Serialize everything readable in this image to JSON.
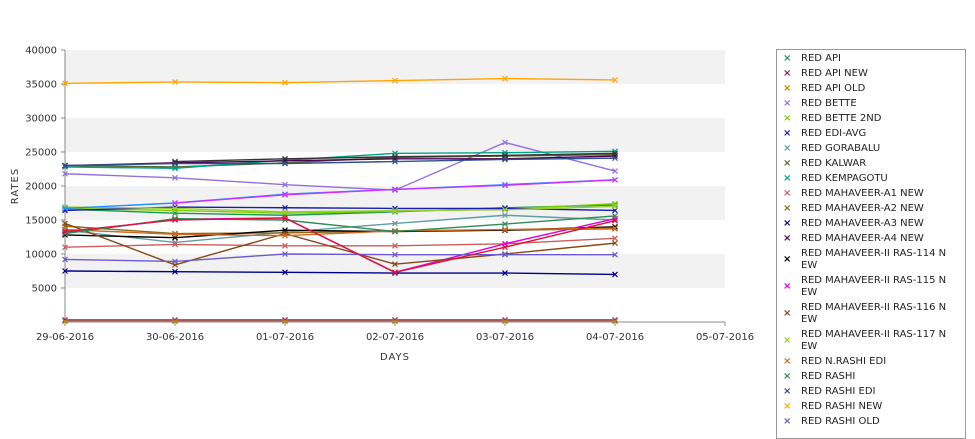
{
  "chart_data": {
    "type": "line",
    "xlabel": "DAYS",
    "ylabel": "RATES",
    "x_ticks": [
      "29-06-2016",
      "30-06-2016",
      "01-07-2016",
      "02-07-2016",
      "03-07-2016",
      "04-07-2016",
      "05-07-2016"
    ],
    "y_ticks": [
      "5000",
      "10000",
      "15000",
      "20000",
      "25000",
      "30000",
      "35000",
      "40000"
    ],
    "ylim": [
      0,
      40000
    ],
    "grid": "alternating horizontal bands",
    "legend_position": "right",
    "series": [
      {
        "name": "RED API",
        "color": "#1a9850",
        "x": [
          "29-06-2016",
          "30-06-2016",
          "01-07-2016",
          "02-07-2016",
          "03-07-2016",
          "04-07-2016"
        ],
        "values": [
          16600,
          16000,
          15700,
          16200,
          16800,
          17200
        ]
      },
      {
        "name": "RED API NEW",
        "color": "#8b1a6b",
        "x": [
          "29-06-2016",
          "30-06-2016",
          "01-07-2016",
          "02-07-2016",
          "03-07-2016",
          "04-07-2016"
        ],
        "values": [
          300,
          300,
          300,
          300,
          300,
          300
        ]
      },
      {
        "name": "RED API OLD",
        "color": "#b8860b",
        "x": [
          "29-06-2016",
          "30-06-2016",
          "01-07-2016",
          "02-07-2016",
          "03-07-2016",
          "04-07-2016"
        ],
        "values": [
          100,
          100,
          100,
          100,
          100,
          100
        ]
      },
      {
        "name": "RED BETTE",
        "color": "#9370db",
        "x": [
          "29-06-2016",
          "30-06-2016",
          "01-07-2016",
          "02-07-2016",
          "03-07-2016",
          "04-07-2016"
        ],
        "values": [
          21800,
          21200,
          20200,
          19400,
          26400,
          22200
        ]
      },
      {
        "name": "RED BETTE 2ND",
        "color": "#7ccd00",
        "x": [
          "29-06-2016",
          "30-06-2016",
          "01-07-2016",
          "02-07-2016",
          "03-07-2016",
          "04-07-2016"
        ],
        "values": [
          16700,
          16400,
          16000,
          16300,
          16600,
          17400
        ]
      },
      {
        "name": "RED EDI-AVG",
        "color": "#1b1bb0",
        "x": [
          "29-06-2016",
          "30-06-2016",
          "01-07-2016",
          "02-07-2016",
          "03-07-2016",
          "04-07-2016"
        ],
        "values": [
          16400,
          16900,
          16800,
          16700,
          16700,
          16400
        ]
      },
      {
        "name": "RED GORABALU",
        "color": "#5f9ea0",
        "x": [
          "29-06-2016",
          "30-06-2016",
          "01-07-2016",
          "02-07-2016",
          "03-07-2016",
          "04-07-2016"
        ],
        "values": [
          13500,
          11700,
          13200,
          14500,
          15700,
          15000
        ]
      },
      {
        "name": "RED KALWAR",
        "color": "#556b2f",
        "x": [
          "29-06-2016",
          "30-06-2016",
          "01-07-2016",
          "02-07-2016",
          "03-07-2016",
          "04-07-2016"
        ],
        "values": [
          23000,
          22800,
          23400,
          24200,
          24400,
          24600
        ]
      },
      {
        "name": "RED KEMPAGOTU",
        "color": "#00a087",
        "x": [
          "29-06-2016",
          "30-06-2016",
          "01-07-2016",
          "02-07-2016",
          "03-07-2016",
          "04-07-2016"
        ],
        "values": [
          22800,
          22600,
          23800,
          24800,
          24900,
          25100
        ]
      },
      {
        "name": "RED MAHAVEER-A1 NEW",
        "color": "#cd5c5c",
        "x": [
          "29-06-2016",
          "30-06-2016",
          "01-07-2016",
          "02-07-2016",
          "03-07-2016",
          "04-07-2016"
        ],
        "values": [
          11000,
          11400,
          11200,
          11200,
          11500,
          12300
        ]
      },
      {
        "name": "RED MAHAVEER-A2 NEW",
        "color": "#8b6914",
        "x": [
          "29-06-2016",
          "30-06-2016",
          "01-07-2016",
          "02-07-2016",
          "03-07-2016",
          "04-07-2016"
        ],
        "values": [
          14100,
          13000,
          13100,
          13400,
          13500,
          13700
        ]
      },
      {
        "name": "RED MAHAVEER-A3 NEW",
        "color": "#00008b",
        "x": [
          "29-06-2016",
          "30-06-2016",
          "01-07-2016",
          "02-07-2016",
          "03-07-2016",
          "04-07-2016"
        ],
        "values": [
          7500,
          7400,
          7300,
          7200,
          7200,
          7000
        ]
      },
      {
        "name": "RED MAHAVEER-A4 NEW",
        "color": "#4b0050",
        "x": [
          "29-06-2016",
          "30-06-2016",
          "01-07-2016",
          "02-07-2016",
          "03-07-2016",
          "04-07-2016"
        ],
        "values": [
          23000,
          23400,
          23700,
          24000,
          24000,
          24400
        ]
      },
      {
        "name": "RED MAHAVEER-II RAS-114 NEW",
        "color": "#000000",
        "x": [
          "29-06-2016",
          "30-06-2016",
          "01-07-2016",
          "02-07-2016",
          "03-07-2016",
          "04-07-2016"
        ],
        "values": [
          12800,
          12400,
          13500,
          13300,
          13500,
          14000
        ]
      },
      {
        "name": "RED MAHAVEER-II RAS-115 NEW",
        "color": "#e000e0",
        "x": [
          "29-06-2016",
          "30-06-2016",
          "01-07-2016",
          "02-07-2016",
          "03-07-2016",
          "04-07-2016"
        ],
        "values": [
          13100,
          15100,
          15300,
          7300,
          11500,
          15200
        ]
      },
      {
        "name": "RED MAHAVEER-II RAS-116 NEW",
        "color": "#8b4513",
        "x": [
          "29-06-2016",
          "30-06-2016",
          "01-07-2016",
          "02-07-2016",
          "03-07-2016",
          "04-07-2016"
        ],
        "values": [
          14500,
          8400,
          13000,
          8500,
          10000,
          11600
        ]
      },
      {
        "name": "RED MAHAVEER-II RAS-117 NEW",
        "color": "#9acd32",
        "x": [
          "29-06-2016",
          "30-06-2016",
          "01-07-2016",
          "02-07-2016",
          "03-07-2016",
          "04-07-2016"
        ],
        "values": [
          16900,
          16700,
          16200,
          16400,
          16500,
          17000
        ]
      },
      {
        "name": "RED N.RASHI EDI",
        "color": "#d2691e",
        "x": [
          "29-06-2016",
          "30-06-2016",
          "01-07-2016",
          "02-07-2016",
          "03-07-2016",
          "04-07-2016"
        ],
        "values": [
          13600,
          12900,
          12700,
          13400,
          13600,
          13800
        ]
      },
      {
        "name": "RED RASHI",
        "color": "#2e8b57",
        "x": [
          "29-06-2016",
          "30-06-2016",
          "01-07-2016",
          "02-07-2016",
          "03-07-2016",
          "04-07-2016"
        ],
        "values": [
          13000,
          15200,
          15000,
          13300,
          14400,
          15600
        ]
      },
      {
        "name": "RED RASHI EDI",
        "color": "#2f4f8f",
        "x": [
          "29-06-2016",
          "30-06-2016",
          "01-07-2016",
          "02-07-2016",
          "03-07-2016",
          "04-07-2016"
        ],
        "values": [
          23000,
          23300,
          23300,
          23600,
          23900,
          24100
        ]
      },
      {
        "name": "RED RASHI NEW",
        "color": "#ffa500",
        "x": [
          "29-06-2016",
          "30-06-2016",
          "01-07-2016",
          "02-07-2016",
          "03-07-2016",
          "04-07-2016"
        ],
        "values": [
          35100,
          35300,
          35200,
          35500,
          35800,
          35600
        ]
      },
      {
        "name": "RED RASHI OLD",
        "color": "#6a5acd",
        "x": [
          "29-06-2016",
          "30-06-2016",
          "01-07-2016",
          "02-07-2016",
          "03-07-2016",
          "04-07-2016"
        ],
        "values": [
          9200,
          8900,
          10000,
          9900,
          9900,
          9900
        ]
      },
      {
        "name": "",
        "color": "#1e90ff",
        "x": [
          "29-06-2016",
          "30-06-2016",
          "01-07-2016",
          "02-07-2016",
          "03-07-2016",
          "04-07-2016"
        ],
        "values": [
          16700,
          17500,
          18800,
          19500,
          20200,
          20900
        ]
      },
      {
        "name": "",
        "color": "#cc33ff",
        "x": [
          "30-06-2016",
          "01-07-2016",
          "02-07-2016",
          "03-07-2016",
          "04-07-2016"
        ],
        "values": [
          17500,
          18700,
          19500,
          20100,
          20900
        ]
      },
      {
        "name": "",
        "color": "#333333",
        "x": [
          "30-06-2016",
          "01-07-2016",
          "02-07-2016",
          "03-07-2016",
          "04-07-2016"
        ],
        "values": [
          23600,
          24000,
          24300,
          24500,
          24800
        ]
      },
      {
        "name": "",
        "color": "#dc143c",
        "x": [
          "29-06-2016",
          "30-06-2016",
          "01-07-2016",
          "02-07-2016",
          "03-07-2016",
          "04-07-2016"
        ],
        "values": [
          13300,
          15000,
          15300,
          7300,
          11000,
          14900
        ]
      }
    ],
    "legend_entries": [
      "RED API",
      "RED API NEW",
      "RED API OLD",
      "RED BETTE",
      "RED BETTE 2ND",
      "RED EDI-AVG",
      "RED GORABALU",
      "RED KALWAR",
      "RED KEMPAGOTU",
      "RED MAHAVEER-A1 NEW",
      "RED MAHAVEER-A2 NEW",
      "RED MAHAVEER-A3 NEW",
      "RED MAHAVEER-A4 NEW",
      "RED MAHAVEER-II RAS-114 N\nEW",
      "RED MAHAVEER-II RAS-115 N\nEW",
      "RED MAHAVEER-II RAS-116 N\nEW",
      "RED MAHAVEER-II RAS-117 N\nEW",
      "RED N.RASHI EDI",
      "RED RASHI",
      "RED RASHI EDI",
      "RED RASHI NEW",
      "RED RASHI OLD"
    ]
  }
}
